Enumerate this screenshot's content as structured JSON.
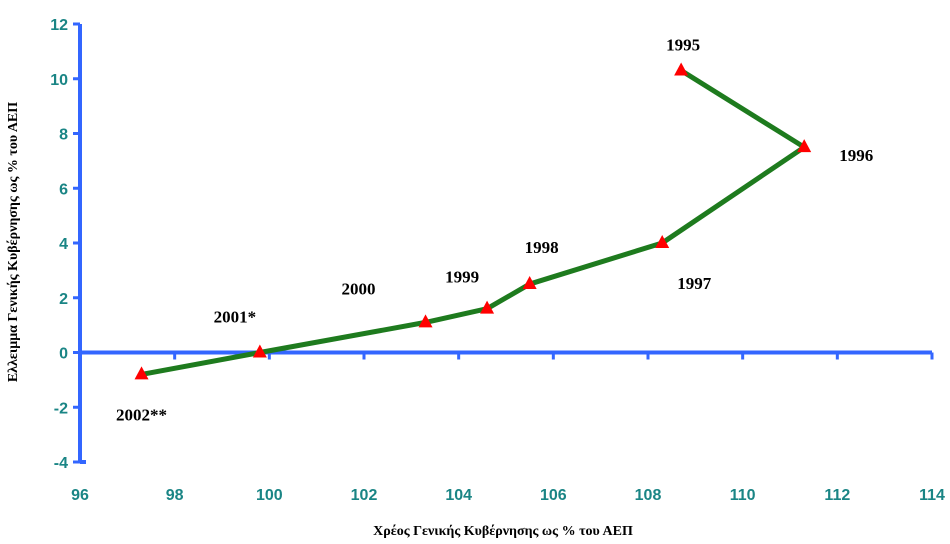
{
  "chart_data": {
    "type": "line",
    "xlabel": "Χρέος Γενικής Κυβέρνησης ως % του ΑΕΠ",
    "ylabel": "Ελλειμμα Γενικής Κυβέρνησης ως % του ΑΕΠ",
    "xlim": [
      96,
      114
    ],
    "ylim": [
      -4,
      12
    ],
    "x_ticks": [
      "96",
      "98",
      "100",
      "102",
      "104",
      "106",
      "108",
      "110",
      "112",
      "114"
    ],
    "y_ticks": [
      "12",
      "10",
      "8",
      "6",
      "4",
      "2",
      "0",
      "-2",
      "-4"
    ],
    "grid": false,
    "series": [
      {
        "color": "#1e7b1e",
        "marker_color": "#ff0000",
        "marker": "triangle",
        "points": [
          {
            "x": 108.7,
            "y": 10.3,
            "label": "1995"
          },
          {
            "x": 111.3,
            "y": 7.5,
            "label": "1996"
          },
          {
            "x": 108.3,
            "y": 4.0,
            "label": "1997"
          },
          {
            "x": 105.5,
            "y": 2.5,
            "label": "1998"
          },
          {
            "x": 104.6,
            "y": 1.6,
            "label": "1999"
          },
          {
            "x": 103.3,
            "y": 1.1,
            "label": "2000"
          },
          {
            "x": 99.8,
            "y": 0.0,
            "label": "2001*"
          },
          {
            "x": 97.3,
            "y": -0.8,
            "label": "2002**"
          }
        ]
      }
    ],
    "axis_color": "#3366ff"
  }
}
